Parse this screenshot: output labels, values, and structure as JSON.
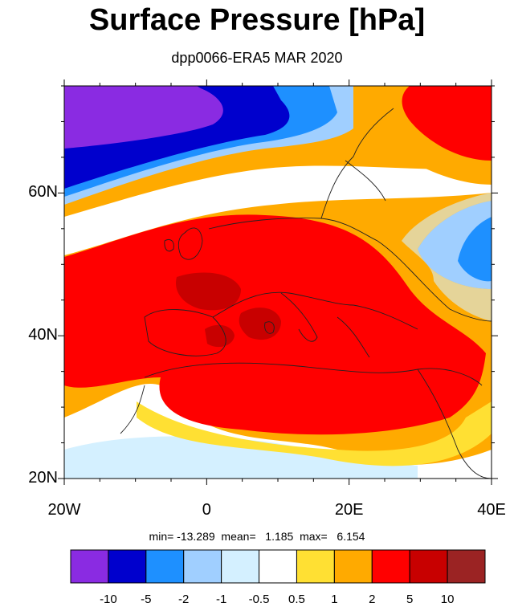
{
  "title": "Surface Pressure [hPa]",
  "subtitle": "dpp0066-ERA5 MAR 2020",
  "stats": {
    "min": "-13.289",
    "mean": "1.185",
    "max": "6.154",
    "text": "min= -13.289  mean=   1.185  max=   6.154"
  },
  "map": {
    "lon_range": [
      -20,
      40
    ],
    "lat_range": [
      20,
      75
    ],
    "x_ticks": [
      {
        "value": -20,
        "label": "20W"
      },
      {
        "value": 0,
        "label": "0"
      },
      {
        "value": 20,
        "label": "20E"
      },
      {
        "value": 40,
        "label": "40E"
      }
    ],
    "y_ticks": [
      {
        "value": 20,
        "label": "20N"
      },
      {
        "value": 40,
        "label": "40N"
      },
      {
        "value": 60,
        "label": "60N"
      }
    ]
  },
  "colorbar": {
    "colors": [
      "#8a2be2",
      "#0000cd",
      "#1e90ff",
      "#a0cfff",
      "#d4f0ff",
      "#ffffff",
      "#ffe033",
      "#ffaa00",
      "#ff0000",
      "#c80000",
      "#9b2323"
    ],
    "labels": [
      "-10",
      "-5",
      "-2",
      "-1",
      "-0.5",
      "0.5",
      "1",
      "2",
      "5",
      "10"
    ]
  }
}
